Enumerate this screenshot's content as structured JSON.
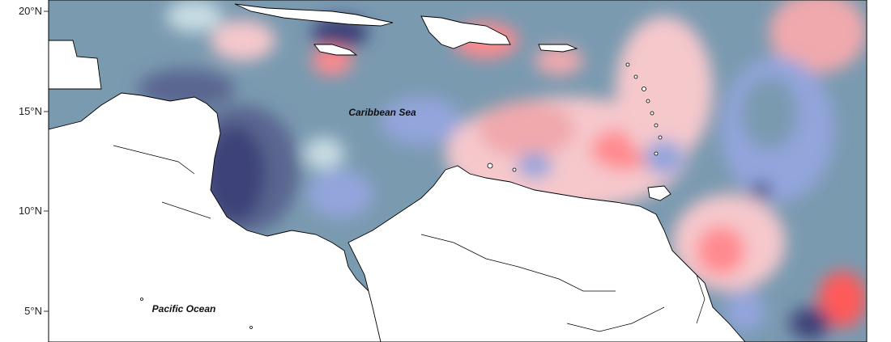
{
  "map": {
    "lat_labels": [
      "20°N",
      "15°N",
      "10°N",
      "5°N"
    ],
    "place_labels": {
      "caribbean": "Caribbean Sea",
      "pacific": "Pacific Ocean"
    },
    "palette": {
      "strong_negative": "#3d4278",
      "negative": "#5a6690",
      "moderate_negative": "#7a9ab0",
      "weak_negative": "#93a5dc",
      "neutral_blue": "#c8dde4",
      "neutral": "#fbeff0",
      "weak_positive": "#f5c8cc",
      "moderate_positive": "#f0a9ad",
      "positive": "#ff8a8f",
      "strong_positive": "#ff5a5a",
      "land": "#ffffff",
      "coastline": "#000000"
    }
  }
}
